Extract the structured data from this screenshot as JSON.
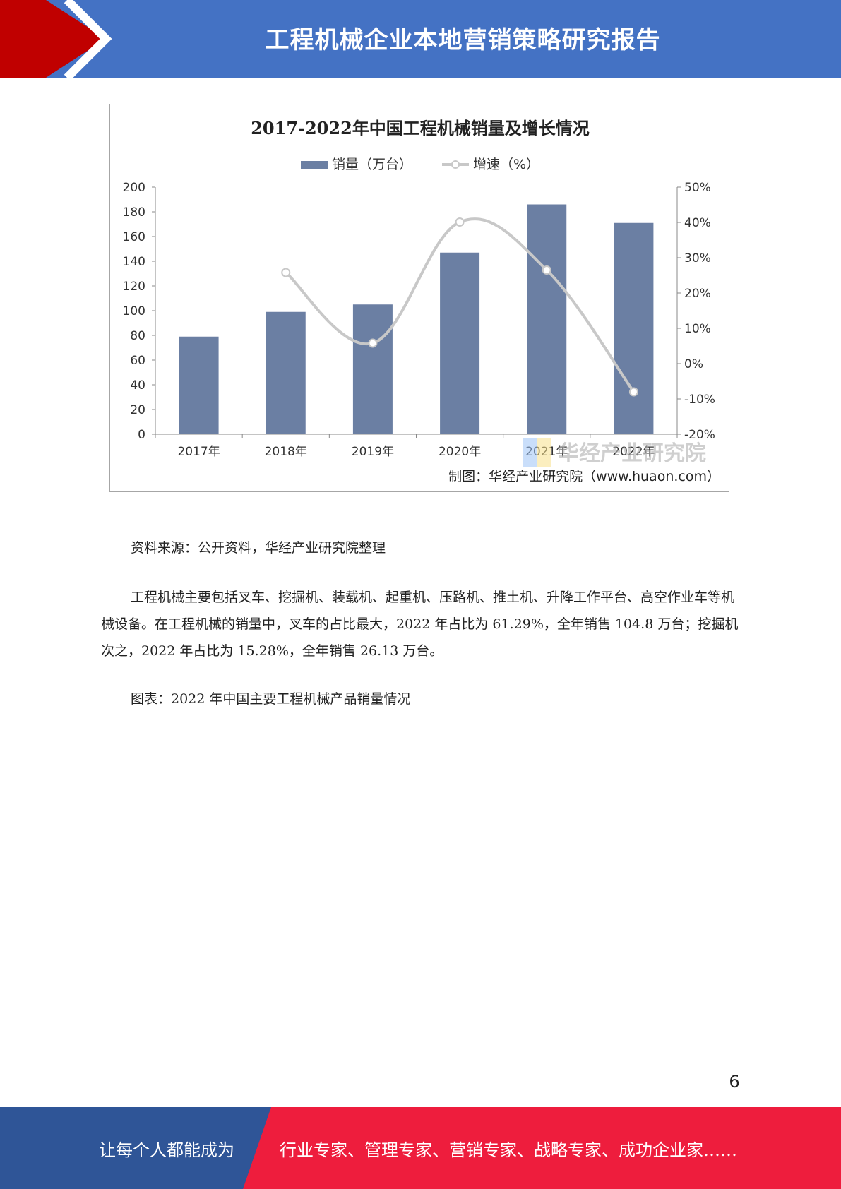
{
  "header": {
    "title": "工程机械企业本地营销策略研究报告",
    "accent_color": "#c00000",
    "band_color": "#4472c4"
  },
  "chart_data": {
    "type": "bar",
    "title": "2017-2022年中国工程机械销量及增长情况",
    "categories": [
      "2017年",
      "2018年",
      "2019年",
      "2020年",
      "2021年",
      "2022年"
    ],
    "series": [
      {
        "name": "销量（万台）",
        "type": "bar",
        "axis": "left",
        "values": [
          79,
          99,
          105,
          147,
          186,
          171
        ],
        "color": "#6b7fa3"
      },
      {
        "name": "增速（%）",
        "type": "line",
        "axis": "right",
        "values": [
          null,
          25.8,
          5.8,
          40.1,
          26.5,
          -8.0
        ],
        "color": "#c8c8c8"
      }
    ],
    "y_left": {
      "min": 0,
      "max": 200,
      "ticks": [
        "0",
        "20",
        "40",
        "60",
        "80",
        "100",
        "120",
        "140",
        "160",
        "180",
        "200"
      ]
    },
    "y_right": {
      "min": -20,
      "max": 50,
      "ticks": [
        "-20%",
        "-10%",
        "0%",
        "10%",
        "20%",
        "30%",
        "40%",
        "50%"
      ]
    },
    "legend_position": "top",
    "grid": false,
    "credit": "制图：华经产业研究院（www.huaon.com）",
    "watermark": "华经产业研究院"
  },
  "source_note": "资料来源：公开资料，华经产业研究院整理",
  "body_paragraph": "工程机械主要包括叉车、挖掘机、装载机、起重机、压路机、推土机、升降工作平台、高空作业车等机械设备。在工程机械的销量中，叉车的占比最大，2022 年占比为 61.29%，全年销售 104.8 万台；挖掘机次之，2022 年占比为 15.28%，全年销售 26.13 万台。",
  "figure_caption": "图表：2022 年中国主要工程机械产品销量情况",
  "page_number": "6",
  "footer": {
    "left_text": "让每个人都能成为",
    "right_text": "行业专家、管理专家、营销专家、战略专家、成功企业家……",
    "left_color": "#2f5597",
    "right_color": "#ee1d3d"
  }
}
